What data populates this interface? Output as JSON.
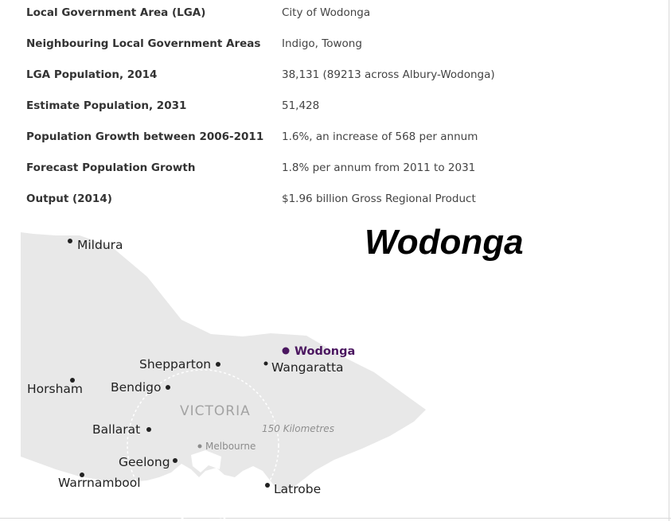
{
  "facts": [
    {
      "label": "Local Government Area (LGA)",
      "value": "City of Wodonga"
    },
    {
      "label": "Neighbouring Local Government Areas",
      "value": "Indigo, Towong"
    },
    {
      "label": "LGA Population, 2014",
      "value": "38,131 (89213 across Albury-Wodonga)"
    },
    {
      "label": "Estimate Population, 2031",
      "value": "51,428"
    },
    {
      "label": "Population Growth between 2006-2011",
      "value": "1.6%, an increase of 568 per annum"
    },
    {
      "label": "Forecast Population Growth",
      "value": "1.8% per annum from 2011 to 2031"
    },
    {
      "label": "Output (2014)",
      "value": "$1.96 billion Gross Regional Product"
    }
  ],
  "map": {
    "title": "Wodonga",
    "region": "VICTORIA",
    "distance": "150 Kilometres",
    "colors": {
      "land": "#e8e8e8",
      "highlight": "#4b1760",
      "dot": "#222222",
      "ring": "#ffffff"
    },
    "cities": {
      "mildura": "Mildura",
      "wodonga": "Wodonga",
      "shepparton": "Shepparton",
      "wangaratta": "Wangaratta",
      "horsham": "Horsham",
      "bendigo": "Bendigo",
      "ballarat": "Ballarat",
      "melbourne": "Melbourne",
      "geelong": "Geelong",
      "warrnambool": "Warrnambool",
      "latrobe": "Latrobe"
    }
  }
}
